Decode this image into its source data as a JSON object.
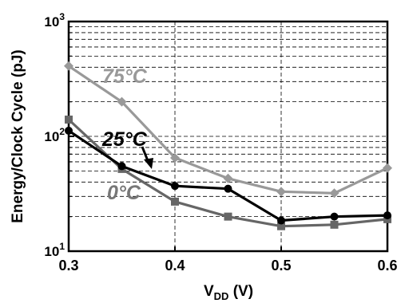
{
  "chart_data": {
    "type": "line",
    "xlabel": "V",
    "xlabel_sub": "DD",
    "xlabel_unit": " (V)",
    "ylabel": "Energy/Clock Cycle (pJ)",
    "yscale": "log",
    "xlim": [
      0.3,
      0.6
    ],
    "ylim": [
      10,
      1000
    ],
    "grid": true,
    "x_ticks": [
      "0.3",
      "0.4",
      "0.5",
      "0.6"
    ],
    "x": [
      0.3,
      0.35,
      0.4,
      0.45,
      0.5,
      0.55,
      0.6
    ],
    "series": [
      {
        "name": "75°C",
        "marker": "diamond",
        "color": "#999999",
        "values": [
          410,
          200,
          65,
          43,
          33,
          32,
          53
        ]
      },
      {
        "name": "25°C",
        "marker": "circle",
        "color": "#000000",
        "values": [
          112,
          55,
          37,
          35,
          18.5,
          20,
          20.5
        ]
      },
      {
        "name": "0°C",
        "marker": "square",
        "color": "#666666",
        "values": [
          140,
          52,
          27,
          20,
          16.5,
          17,
          19
        ]
      }
    ]
  }
}
